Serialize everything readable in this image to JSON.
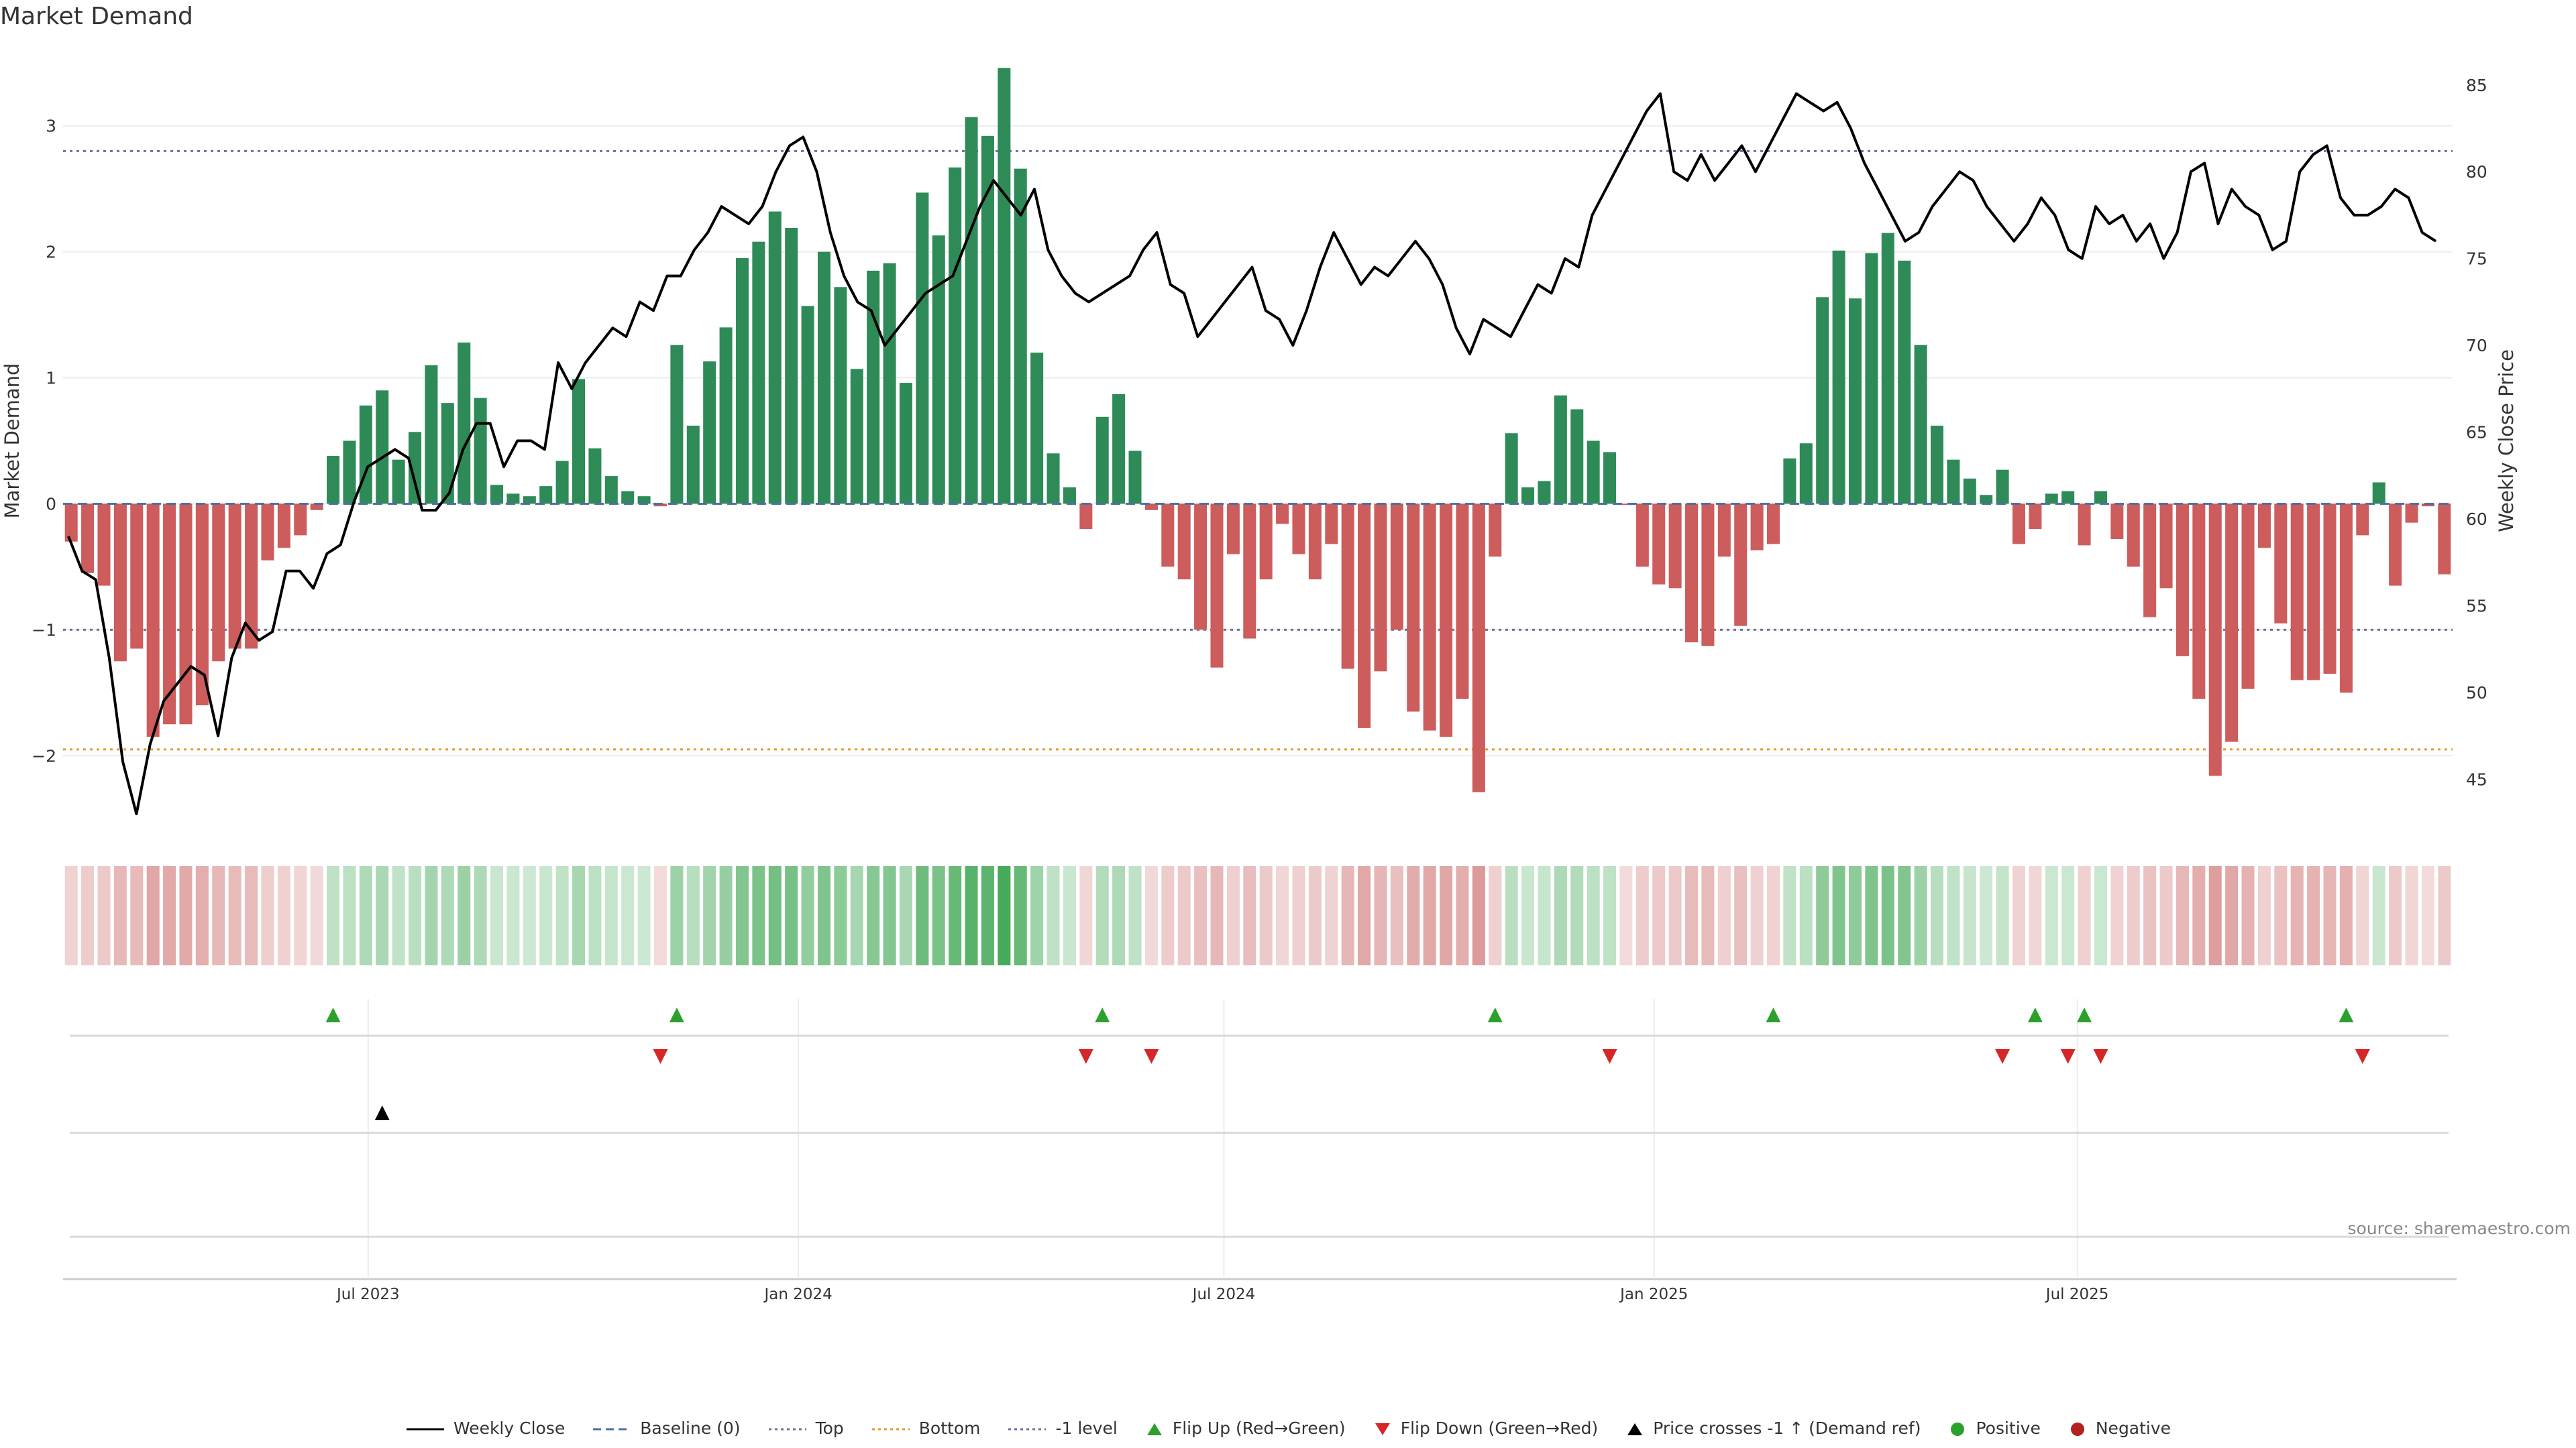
{
  "title": "Market Demand",
  "source": "source: sharemaestro.com",
  "legend": [
    {
      "label": "Weekly Close",
      "kind": "line-solid",
      "color": "#000000"
    },
    {
      "label": "Baseline (0)",
      "kind": "line-dash",
      "color": "#4a6fa5"
    },
    {
      "label": "Top",
      "kind": "line-dot",
      "color": "#6c6f9a"
    },
    {
      "label": "Bottom",
      "kind": "line-dot",
      "color": "#e39c2f"
    },
    {
      "label": "-1 level",
      "kind": "line-dot",
      "color": "#6c6f9a"
    },
    {
      "label": "Flip Up (Red→Green)",
      "kind": "tri-up",
      "color": "#2ca02c"
    },
    {
      "label": "Flip Down (Green→Red)",
      "kind": "tri-down",
      "color": "#d62728"
    },
    {
      "label": "Price crosses -1 ↑ (Demand ref)",
      "kind": "tri-up",
      "color": "#000000"
    },
    {
      "label": "Positive",
      "kind": "dot",
      "color": "#2ca02c"
    },
    {
      "label": "Negative",
      "kind": "dot",
      "color": "#b22222"
    }
  ],
  "colors": {
    "positive": "#2e8b57",
    "negative": "#cd5c5c",
    "price": "#000000",
    "flip_up": "#2ca02c",
    "flip_down": "#d62728",
    "cross": "#000000"
  },
  "chart_data": {
    "type": "bar",
    "title": "Market Demand",
    "ylabel": "Market Demand",
    "y2label": "Weekly Close Price",
    "ylim": [
      -2.6,
      3.6
    ],
    "y2lim": [
      42,
      87
    ],
    "yticks": [
      -2,
      -1,
      0,
      1,
      2,
      3
    ],
    "y2ticks": [
      45,
      50,
      55,
      60,
      65,
      70,
      75,
      80,
      85
    ],
    "xticks": [
      "Jul 2023",
      "Jan 2024",
      "Jul 2024",
      "Jan 2025",
      "Jul 2025"
    ],
    "reference_lines": {
      "top": 2.8,
      "bottom": -1.95,
      "minus_one": -1,
      "baseline": 0
    },
    "demand": [
      -0.3,
      -0.55,
      -0.65,
      -1.25,
      -1.15,
      -1.85,
      -1.75,
      -1.75,
      -1.6,
      -1.25,
      -1.15,
      -1.15,
      -0.45,
      -0.35,
      -0.25,
      -0.05,
      0.38,
      0.5,
      0.78,
      0.9,
      0.35,
      0.57,
      1.1,
      0.8,
      1.28,
      0.84,
      0.15,
      0.08,
      0.06,
      0.14,
      0.34,
      0.99,
      0.44,
      0.22,
      0.1,
      0.06,
      -0.02,
      1.26,
      0.62,
      1.13,
      1.4,
      1.95,
      2.08,
      2.32,
      2.19,
      1.57,
      2.0,
      1.72,
      1.07,
      1.85,
      1.91,
      0.96,
      2.47,
      2.13,
      2.67,
      3.07,
      2.92,
      3.46,
      2.66,
      1.2,
      0.4,
      0.13,
      -0.2,
      0.69,
      0.87,
      0.42,
      -0.05,
      -0.5,
      -0.6,
      -1.0,
      -1.3,
      -0.4,
      -1.07,
      -0.6,
      -0.16,
      -0.4,
      -0.6,
      -0.32,
      -1.31,
      -1.78,
      -1.33,
      -1.0,
      -1.65,
      -1.8,
      -1.85,
      -1.55,
      -2.29,
      -0.42,
      0.56,
      0.13,
      0.18,
      0.86,
      0.75,
      0.5,
      0.41,
      -0.01,
      -0.5,
      -0.64,
      -0.67,
      -1.1,
      -1.13,
      -0.42,
      -0.97,
      -0.37,
      -0.32,
      0.36,
      0.48,
      1.64,
      2.01,
      1.63,
      1.99,
      2.15,
      1.93,
      1.26,
      0.62,
      0.35,
      0.2,
      0.07,
      0.27,
      -0.32,
      -0.2,
      0.08,
      0.1,
      -0.33,
      0.1,
      -0.28,
      -0.5,
      -0.9,
      -0.67,
      -1.21,
      -1.55,
      -2.16,
      -1.89,
      -1.47,
      -0.35,
      -0.95,
      -1.4,
      -1.4,
      -1.35,
      -1.5,
      -0.25,
      0.17,
      -0.65,
      -0.15,
      -0.02,
      -0.56
    ],
    "weekly_close": [
      59,
      57,
      56.5,
      52,
      46,
      43,
      47,
      49.5,
      50.5,
      51.5,
      51,
      47.5,
      52,
      54,
      53,
      53.5,
      57,
      57,
      56,
      58,
      58.5,
      61,
      63,
      63.5,
      64,
      63.5,
      60.5,
      60.5,
      61.5,
      64,
      65.5,
      65.5,
      63,
      64.5,
      64.5,
      64,
      69,
      67.5,
      69,
      70,
      71,
      70.5,
      72.5,
      72,
      74,
      74,
      75.5,
      76.5,
      78,
      77.5,
      77,
      78,
      80,
      81.5,
      82,
      80,
      76.5,
      74,
      72.5,
      72,
      70,
      71,
      72,
      73,
      73.5,
      74,
      76,
      78,
      79.5,
      78.5,
      77.5,
      79,
      75.5,
      74,
      73,
      72.5,
      73,
      73.5,
      74,
      75.5,
      76.5,
      73.5,
      73,
      70.5,
      71.5,
      72.5,
      73.5,
      74.5,
      72,
      71.5,
      70,
      72,
      74.5,
      76.5,
      75,
      73.5,
      74.5,
      74,
      75,
      76,
      75,
      73.5,
      71,
      69.5,
      71.5,
      71,
      70.5,
      72,
      73.5,
      73,
      75,
      74.5,
      77.5,
      79,
      80.5,
      82,
      83.5,
      84.5,
      80,
      79.5,
      81,
      79.5,
      80.5,
      81.5,
      80,
      81.5,
      83,
      84.5,
      84,
      83.5,
      84,
      82.5,
      80.5,
      79,
      77.5,
      76,
      76.5,
      78,
      79,
      80,
      79.5,
      78,
      77,
      76,
      77,
      78.5,
      77.5,
      75.5,
      75,
      78,
      77,
      77.5,
      76,
      77,
      75,
      76.5,
      80,
      80.5,
      77,
      79,
      78,
      77.5,
      75.5,
      76,
      80,
      81,
      81.5,
      78.5,
      77.5,
      77.5,
      78,
      79,
      78.5,
      76.5,
      76
    ]
  },
  "event_rows": {
    "flip_up_weeks": [
      16,
      37,
      63,
      87,
      104,
      120,
      123,
      139
    ],
    "flip_down_weeks": [
      36,
      62,
      66,
      94,
      118,
      122,
      124,
      140
    ],
    "price_cross_weeks": [
      19
    ]
  }
}
